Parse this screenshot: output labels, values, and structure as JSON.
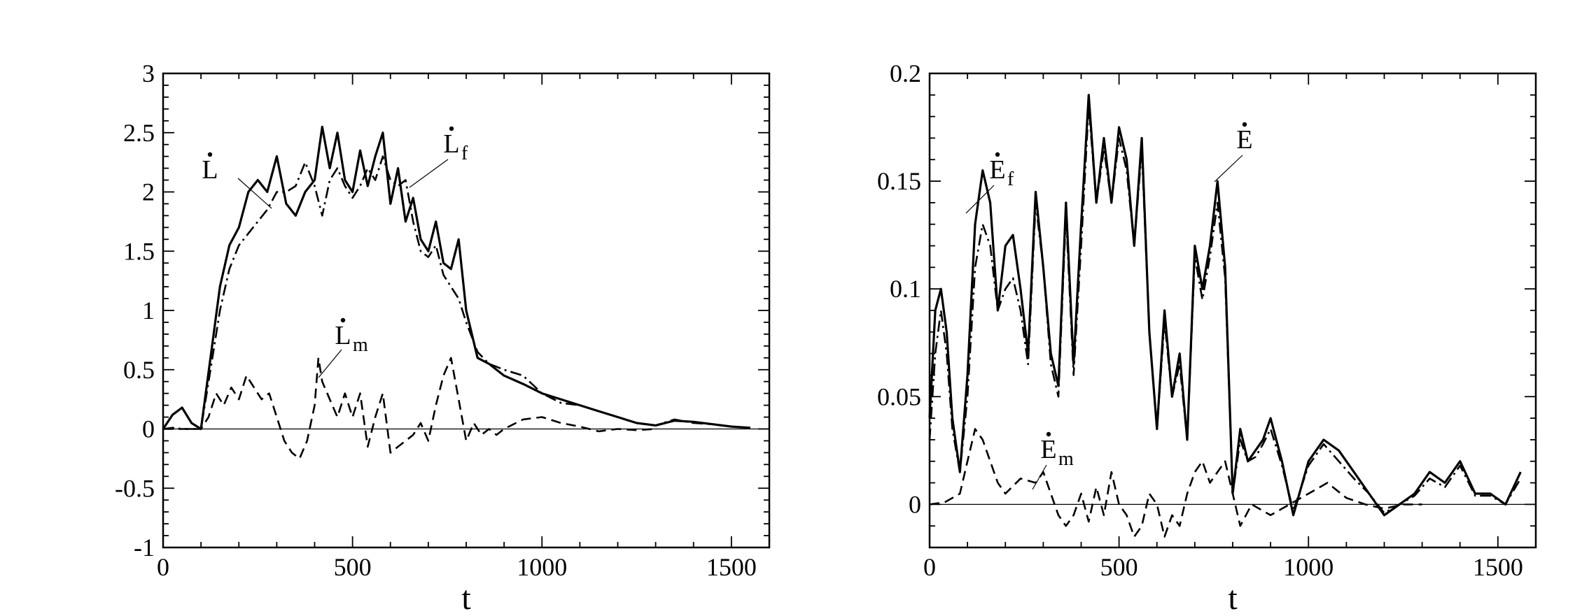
{
  "chart_data": [
    {
      "type": "line",
      "xlabel": "t",
      "ylabel": "",
      "xlim": [
        0,
        1600
      ],
      "ylim": [
        -1,
        3
      ],
      "xticks": [
        0,
        500,
        1000,
        1500
      ],
      "yticks": [
        -1,
        -0.5,
        0,
        0.5,
        1,
        1.5,
        2,
        2.5,
        3
      ],
      "xtick_labels": [
        "0",
        "500",
        "1000",
        "1500"
      ],
      "ytick_labels": [
        "-1",
        "-0.5",
        "0",
        "0.5",
        "1",
        "1.5",
        "2",
        "2.5",
        "3"
      ],
      "grid": false,
      "zero_line": true,
      "annotations": [
        {
          "main": "L",
          "sub": "",
          "dot": true
        },
        {
          "main": "L",
          "sub": "f",
          "dot": true
        },
        {
          "main": "L",
          "sub": "m",
          "dot": true
        }
      ],
      "series": [
        {
          "style": "solid",
          "x": [
            0,
            25,
            50,
            75,
            100,
            125,
            150,
            175,
            200,
            225,
            250,
            275,
            300,
            325,
            350,
            375,
            400,
            420,
            440,
            460,
            480,
            500,
            520,
            540,
            560,
            580,
            600,
            620,
            640,
            660,
            680,
            700,
            720,
            740,
            760,
            780,
            800,
            830,
            860,
            900,
            950,
            1000,
            1050,
            1100,
            1150,
            1200,
            1250,
            1300,
            1350,
            1400,
            1450,
            1500,
            1550
          ],
          "y": [
            0,
            0.12,
            0.18,
            0.05,
            0.0,
            0.6,
            1.2,
            1.55,
            1.7,
            2.0,
            2.1,
            2.0,
            2.3,
            1.9,
            1.8,
            2.0,
            2.1,
            2.55,
            2.2,
            2.5,
            2.1,
            2.0,
            2.35,
            2.05,
            2.3,
            2.5,
            1.9,
            2.2,
            1.75,
            1.95,
            1.6,
            1.5,
            1.75,
            1.4,
            1.35,
            1.6,
            1.0,
            0.6,
            0.55,
            0.45,
            0.38,
            0.3,
            0.25,
            0.2,
            0.15,
            0.1,
            0.05,
            0.03,
            0.07,
            0.06,
            0.04,
            0.02,
            0.01
          ]
        },
        {
          "style": "dashdot",
          "x": [
            0,
            25,
            50,
            75,
            100,
            125,
            150,
            175,
            200,
            225,
            250,
            275,
            300,
            325,
            350,
            375,
            400,
            420,
            440,
            460,
            480,
            500,
            520,
            540,
            560,
            580,
            600,
            620,
            640,
            660,
            680,
            700,
            720,
            740,
            760,
            780,
            800,
            830,
            860,
            900,
            950,
            1000,
            1050,
            1100,
            1150,
            1200,
            1250,
            1300,
            1350,
            1400,
            1450,
            1500,
            1550
          ],
          "y": [
            0,
            0.01,
            0.0,
            0.0,
            0.0,
            0.5,
            1.0,
            1.35,
            1.55,
            1.65,
            1.75,
            1.85,
            2.0,
            2.0,
            2.05,
            2.25,
            2.05,
            1.8,
            2.1,
            2.2,
            2.05,
            1.95,
            2.05,
            2.2,
            2.1,
            2.3,
            2.1,
            2.05,
            2.1,
            1.75,
            1.5,
            1.45,
            1.55,
            1.3,
            1.2,
            1.1,
            0.9,
            0.65,
            0.55,
            0.5,
            0.45,
            0.3,
            0.22,
            0.2,
            0.15,
            0.1,
            0.05,
            0.03,
            0.08,
            0.05,
            0.04,
            0.02,
            0.01
          ]
        },
        {
          "style": "dashed",
          "x": [
            0,
            50,
            100,
            120,
            140,
            160,
            180,
            200,
            220,
            240,
            260,
            280,
            300,
            320,
            340,
            360,
            380,
            400,
            410,
            420,
            440,
            460,
            480,
            500,
            520,
            540,
            560,
            580,
            600,
            620,
            640,
            660,
            680,
            700,
            720,
            740,
            760,
            780,
            800,
            820,
            840,
            860,
            880,
            900,
            950,
            1000,
            1050,
            1100,
            1150,
            1200,
            1250,
            1300
          ],
          "y": [
            0,
            0.0,
            0.0,
            0.1,
            0.3,
            0.2,
            0.35,
            0.25,
            0.45,
            0.35,
            0.25,
            0.3,
            0.1,
            -0.1,
            -0.2,
            -0.25,
            -0.1,
            0.2,
            0.6,
            0.4,
            0.25,
            0.1,
            0.3,
            0.1,
            0.3,
            -0.15,
            0.1,
            0.3,
            -0.2,
            -0.15,
            -0.1,
            -0.05,
            0.05,
            -0.1,
            0.2,
            0.45,
            0.6,
            0.25,
            -0.1,
            0.05,
            -0.05,
            0.0,
            -0.05,
            0.0,
            0.08,
            0.1,
            0.05,
            0.02,
            -0.02,
            0.0,
            -0.01,
            0.0
          ]
        }
      ]
    },
    {
      "type": "line",
      "xlabel": "t",
      "ylabel": "",
      "xlim": [
        0,
        1600
      ],
      "ylim": [
        -0.02,
        0.2
      ],
      "xticks": [
        0,
        500,
        1000,
        1500
      ],
      "yticks": [
        0,
        0.05,
        0.1,
        0.15,
        0.2
      ],
      "xtick_labels": [
        "0",
        "500",
        "1000",
        "1500"
      ],
      "ytick_labels": [
        "0",
        "0.05",
        "0.1",
        "0.15",
        "0.2"
      ],
      "grid": false,
      "zero_line": true,
      "annotations": [
        {
          "main": "E",
          "sub": "f",
          "dot": true
        },
        {
          "main": "E",
          "sub": "",
          "dot": true
        },
        {
          "main": "E",
          "sub": "m",
          "dot": true
        }
      ],
      "series": [
        {
          "style": "solid",
          "x": [
            0,
            15,
            30,
            45,
            60,
            80,
            100,
            120,
            140,
            160,
            180,
            200,
            220,
            240,
            260,
            280,
            300,
            320,
            340,
            360,
            380,
            400,
            420,
            440,
            460,
            480,
            500,
            520,
            540,
            560,
            580,
            600,
            620,
            640,
            660,
            680,
            700,
            720,
            740,
            760,
            780,
            800,
            820,
            840,
            860,
            880,
            900,
            930,
            960,
            1000,
            1040,
            1080,
            1120,
            1160,
            1200,
            1240,
            1280,
            1320,
            1360,
            1400,
            1440,
            1480,
            1520,
            1560
          ],
          "y": [
            0.04,
            0.09,
            0.1,
            0.08,
            0.04,
            0.015,
            0.06,
            0.13,
            0.155,
            0.14,
            0.09,
            0.12,
            0.125,
            0.1,
            0.07,
            0.145,
            0.11,
            0.07,
            0.055,
            0.14,
            0.065,
            0.13,
            0.19,
            0.14,
            0.17,
            0.14,
            0.175,
            0.16,
            0.12,
            0.17,
            0.08,
            0.035,
            0.09,
            0.05,
            0.07,
            0.03,
            0.12,
            0.1,
            0.12,
            0.15,
            0.11,
            0.005,
            0.035,
            0.02,
            0.025,
            0.03,
            0.04,
            0.02,
            -0.005,
            0.02,
            0.03,
            0.025,
            0.015,
            0.005,
            -0.005,
            0.0,
            0.005,
            0.015,
            0.01,
            0.02,
            0.005,
            0.005,
            0.0,
            0.015
          ]
        },
        {
          "style": "dashdot",
          "x": [
            0,
            15,
            30,
            45,
            60,
            80,
            100,
            120,
            140,
            160,
            180,
            200,
            220,
            240,
            260,
            280,
            300,
            320,
            340,
            360,
            380,
            400,
            420,
            440,
            460,
            480,
            500,
            520,
            540,
            560,
            580,
            600,
            620,
            640,
            660,
            680,
            700,
            720,
            740,
            760,
            780,
            800,
            820,
            840,
            860,
            880,
            900,
            930,
            960,
            1000,
            1040,
            1080,
            1120,
            1160,
            1200,
            1240,
            1280,
            1320,
            1360,
            1400,
            1440,
            1480,
            1520,
            1560
          ],
          "y": [
            0.03,
            0.07,
            0.09,
            0.07,
            0.035,
            0.015,
            0.05,
            0.11,
            0.13,
            0.12,
            0.09,
            0.1,
            0.105,
            0.09,
            0.065,
            0.14,
            0.11,
            0.065,
            0.05,
            0.135,
            0.06,
            0.12,
            0.185,
            0.14,
            0.165,
            0.14,
            0.17,
            0.155,
            0.12,
            0.165,
            0.08,
            0.035,
            0.085,
            0.05,
            0.065,
            0.03,
            0.115,
            0.095,
            0.115,
            0.14,
            0.105,
            0.005,
            0.03,
            0.02,
            0.022,
            0.028,
            0.035,
            0.018,
            -0.003,
            0.018,
            0.028,
            0.02,
            0.012,
            0.005,
            -0.004,
            0.0,
            0.004,
            0.012,
            0.008,
            0.018,
            0.004,
            0.004,
            0.0,
            0.012
          ]
        },
        {
          "style": "dashed",
          "x": [
            0,
            40,
            80,
            100,
            120,
            140,
            160,
            180,
            200,
            240,
            280,
            300,
            320,
            340,
            360,
            380,
            400,
            420,
            440,
            460,
            480,
            500,
            520,
            540,
            560,
            580,
            600,
            620,
            640,
            660,
            680,
            700,
            720,
            740,
            760,
            780,
            800,
            820,
            850,
            900,
            950,
            1000,
            1050,
            1100,
            1150,
            1200,
            1250,
            1300
          ],
          "y": [
            0,
            0.001,
            0.005,
            0.02,
            0.035,
            0.03,
            0.02,
            0.01,
            0.005,
            0.012,
            0.01,
            0.015,
            0.005,
            -0.005,
            -0.01,
            -0.005,
            0.005,
            -0.008,
            0.008,
            -0.005,
            0.015,
            0.0,
            -0.005,
            -0.015,
            -0.01,
            0.005,
            0.0,
            -0.015,
            -0.005,
            -0.01,
            0.005,
            0.015,
            0.02,
            0.01,
            0.015,
            0.02,
            0.005,
            -0.01,
            0.0,
            -0.005,
            0.0,
            0.005,
            0.01,
            0.003,
            0.0,
            -0.002,
            0.0,
            0.0
          ]
        }
      ]
    }
  ]
}
